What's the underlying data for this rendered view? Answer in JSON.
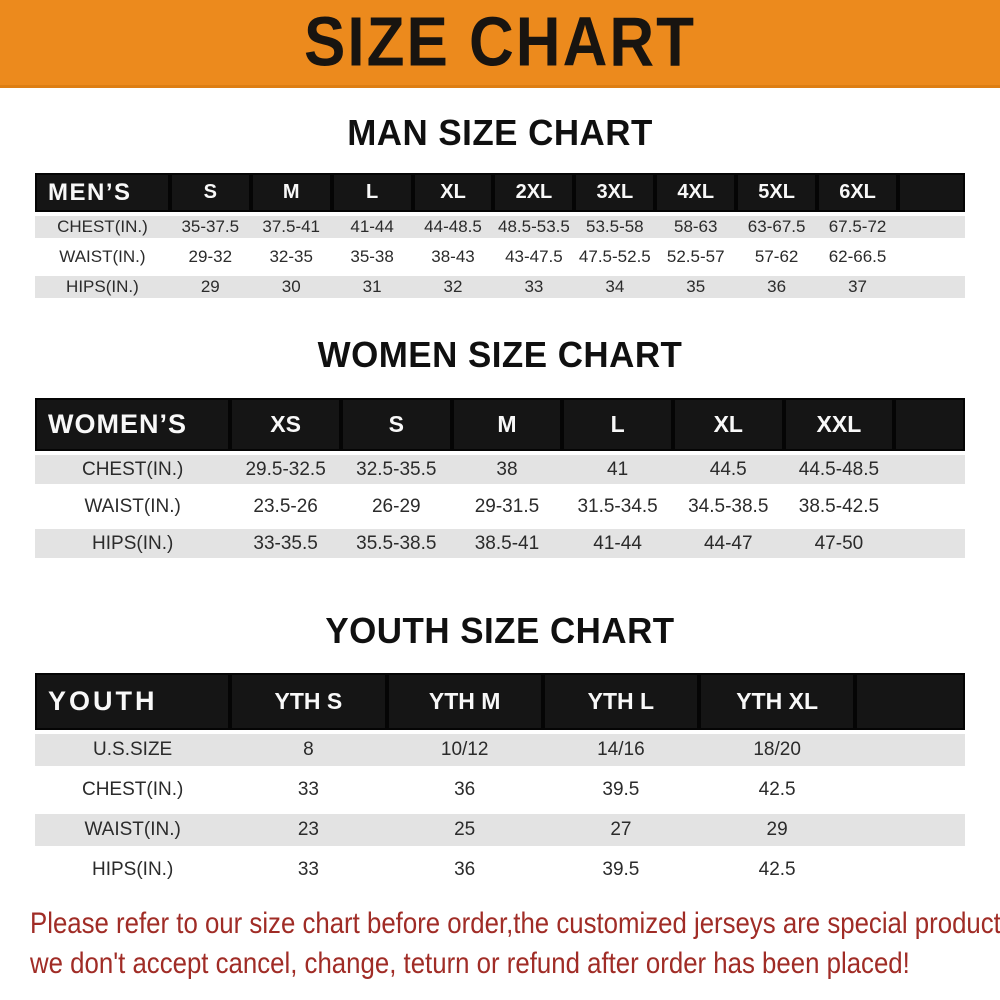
{
  "banner": {
    "title": "SIZE CHART"
  },
  "sections": {
    "men": {
      "heading": "MAN SIZE CHART",
      "table": {
        "header": [
          "MEN’S",
          "S",
          "M",
          "L",
          "XL",
          "2XL",
          "3XL",
          "4XL",
          "5XL",
          "6XL"
        ],
        "rows": [
          {
            "label": "CHEST(IN.)",
            "values": [
              "35-37.5",
              "37.5-41",
              "41-44",
              "44-48.5",
              "48.5-53.5",
              "53.5-58",
              "58-63",
              "63-67.5",
              "67.5-72"
            ]
          },
          {
            "label": "WAIST(IN.)",
            "values": [
              "29-32",
              "32-35",
              "35-38",
              "38-43",
              "43-47.5",
              "47.5-52.5",
              "52.5-57",
              "57-62",
              "62-66.5"
            ]
          },
          {
            "label": "HIPS(IN.)",
            "values": [
              "29",
              "30",
              "31",
              "32",
              "33",
              "34",
              "35",
              "36",
              "37"
            ]
          }
        ]
      }
    },
    "women": {
      "heading": "WOMEN SIZE CHART",
      "table": {
        "header": [
          "WOMEN’S",
          "XS",
          "S",
          "M",
          "L",
          "XL",
          "XXL"
        ],
        "rows": [
          {
            "label": "CHEST(IN.)",
            "values": [
              "29.5-32.5",
              "32.5-35.5",
              "38",
              "41",
              "44.5",
              "44.5-48.5"
            ]
          },
          {
            "label": "WAIST(IN.)",
            "values": [
              "23.5-26",
              "26-29",
              "29-31.5",
              "31.5-34.5",
              "34.5-38.5",
              "38.5-42.5"
            ]
          },
          {
            "label": "HIPS(IN.)",
            "values": [
              "33-35.5",
              "35.5-38.5",
              "38.5-41",
              "41-44",
              "44-47",
              "47-50"
            ]
          }
        ]
      }
    },
    "youth": {
      "heading": "YOUTH SIZE CHART",
      "table": {
        "header": [
          "YOUTH",
          "YTH S",
          "YTH M",
          "YTH L",
          "YTH XL"
        ],
        "rows": [
          {
            "label": "U.S.SIZE",
            "values": [
              "8",
              "10/12",
              "14/16",
              "18/20"
            ]
          },
          {
            "label": "CHEST(IN.)",
            "values": [
              "33",
              "36",
              "39.5",
              "42.5"
            ]
          },
          {
            "label": "WAIST(IN.)",
            "values": [
              "23",
              "25",
              "27",
              "29"
            ]
          },
          {
            "label": "HIPS(IN.)",
            "values": [
              "33",
              "36",
              "39.5",
              "42.5"
            ]
          }
        ]
      }
    }
  },
  "footer": {
    "line1": "Please refer to our size chart before order,the customized jerseys are special products,",
    "line2": "we don't accept cancel, change, teturn or refund after order has been placed!"
  },
  "colors": {
    "banner_orange": "#EC8A1D",
    "header_bar_black": "#151515",
    "row_stripe_gray": "#E3E3E3",
    "heading_black": "#101010",
    "disclaimer_red": "#A02C26"
  }
}
